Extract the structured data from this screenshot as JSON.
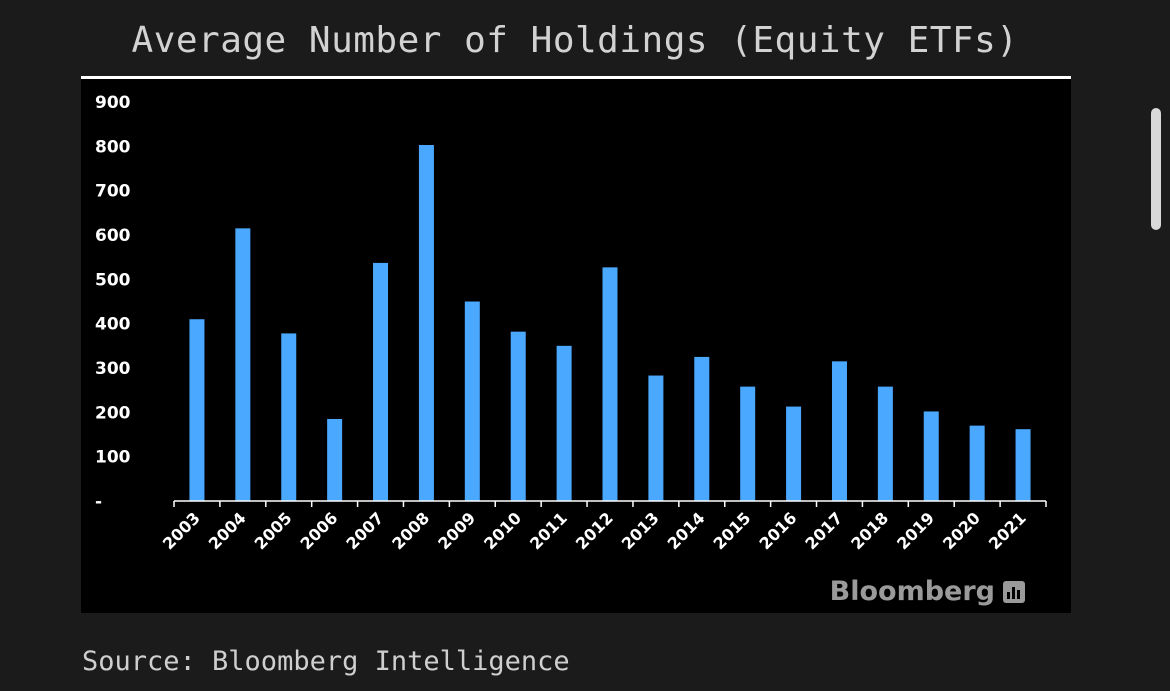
{
  "page": {
    "title": "Average Number of Holdings (Equity ETFs)",
    "source": "Source: Bloomberg Intelligence",
    "watermark": "Bloomberg"
  },
  "colors": {
    "background": "#1b1b1b",
    "panel": "#000000",
    "bar": "#4aa8ff",
    "text": "#ffffff"
  },
  "chart_data": {
    "type": "bar",
    "title": "",
    "xlabel": "",
    "ylabel": "",
    "categories": [
      "2003",
      "2004",
      "2005",
      "2006",
      "2007",
      "2008",
      "2009",
      "2010",
      "2011",
      "2012",
      "2013",
      "2014",
      "2015",
      "2016",
      "2017",
      "2018",
      "2019",
      "2020",
      "2021"
    ],
    "values": [
      410,
      615,
      378,
      185,
      537,
      803,
      450,
      382,
      350,
      527,
      283,
      325,
      258,
      213,
      315,
      258,
      202,
      170,
      162
    ],
    "ylim": [
      0,
      900
    ],
    "yticks": [
      0,
      100,
      200,
      300,
      400,
      500,
      600,
      700,
      800,
      900
    ],
    "ytick_labels": [
      "-",
      "100",
      "200",
      "300",
      "400",
      "500",
      "600",
      "700",
      "800",
      "900"
    ],
    "grid": false,
    "legend": "none"
  }
}
